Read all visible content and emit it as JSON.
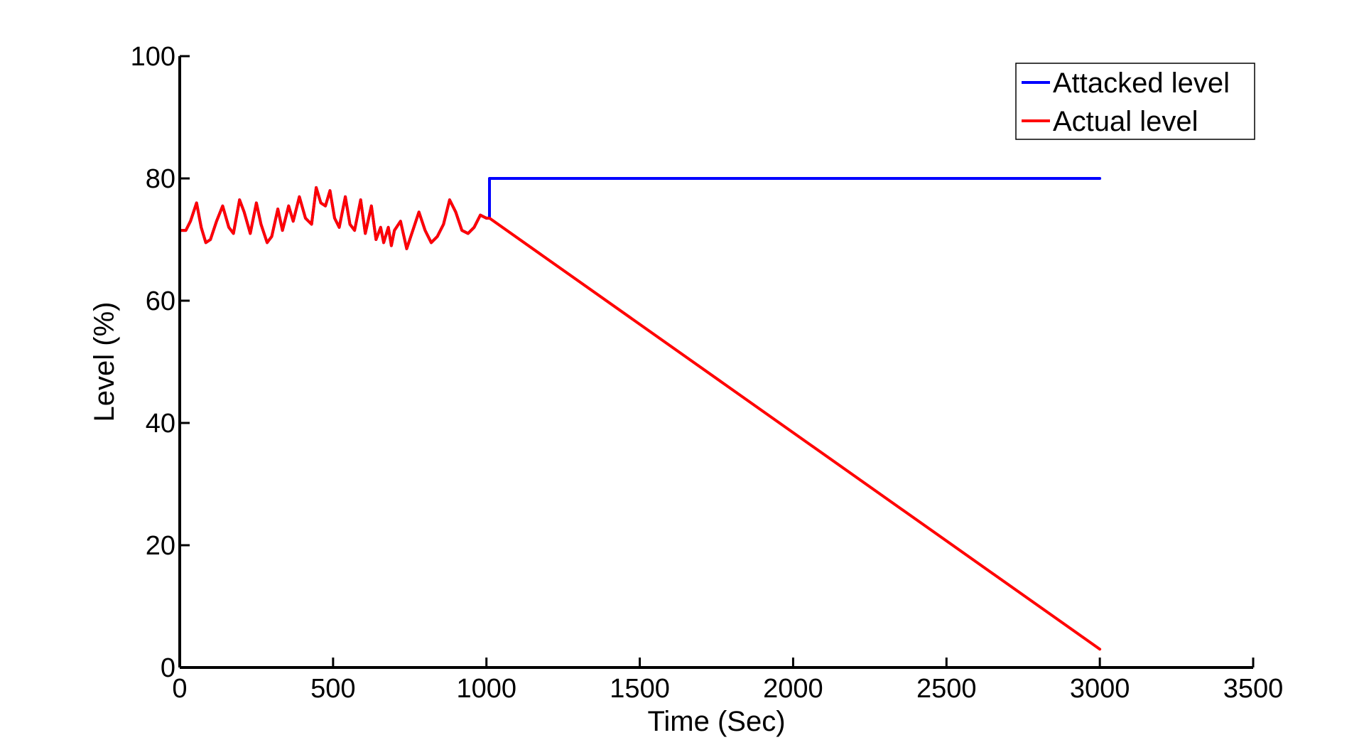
{
  "chart_data": {
    "type": "line",
    "title": "",
    "xlabel": "Time (Sec)",
    "ylabel": "Level (%)",
    "xlim": [
      0,
      3500
    ],
    "ylim": [
      0,
      100
    ],
    "xticks": [
      0,
      500,
      1000,
      1500,
      2000,
      2500,
      3000,
      3500
    ],
    "yticks": [
      0,
      20,
      40,
      60,
      80,
      100
    ],
    "grid": false,
    "legend_position": "top-right",
    "series": [
      {
        "name": "Attacked level",
        "color": "#0000ff",
        "x": [
          0,
          20,
          35,
          55,
          70,
          85,
          100,
          120,
          140,
          160,
          175,
          195,
          210,
          230,
          250,
          265,
          285,
          300,
          320,
          335,
          355,
          370,
          390,
          410,
          430,
          445,
          460,
          475,
          490,
          505,
          520,
          540,
          555,
          570,
          590,
          605,
          625,
          640,
          655,
          665,
          680,
          690,
          700,
          720,
          740,
          760,
          780,
          800,
          820,
          840,
          860,
          880,
          900,
          920,
          940,
          960,
          980,
          1000,
          1010,
          1010,
          3000
        ],
        "y": [
          71.5,
          71.5,
          73,
          76,
          72,
          69.5,
          70,
          73,
          75.5,
          72,
          71,
          76.5,
          74.5,
          71,
          76,
          72.5,
          69.5,
          70.5,
          75,
          71.5,
          75.5,
          73,
          77,
          73.5,
          72.5,
          78.5,
          76,
          75.5,
          78,
          73.5,
          72,
          77,
          72.5,
          71.5,
          76.5,
          71,
          75.5,
          70,
          72,
          69.5,
          72,
          69,
          71.5,
          73,
          68.5,
          71.5,
          74.5,
          71.5,
          69.5,
          70.5,
          72.5,
          76.5,
          74.5,
          71.5,
          71,
          72,
          74,
          73.5,
          73.5,
          80,
          80
        ]
      },
      {
        "name": "Actual level",
        "color": "#ff0000",
        "x": [
          0,
          20,
          35,
          55,
          70,
          85,
          100,
          120,
          140,
          160,
          175,
          195,
          210,
          230,
          250,
          265,
          285,
          300,
          320,
          335,
          355,
          370,
          390,
          410,
          430,
          445,
          460,
          475,
          490,
          505,
          520,
          540,
          555,
          570,
          590,
          605,
          625,
          640,
          655,
          665,
          680,
          690,
          700,
          720,
          740,
          760,
          780,
          800,
          820,
          840,
          860,
          880,
          900,
          920,
          940,
          960,
          980,
          1000,
          1010,
          3000
        ],
        "y": [
          71.5,
          71.5,
          73,
          76,
          72,
          69.5,
          70,
          73,
          75.5,
          72,
          71,
          76.5,
          74.5,
          71,
          76,
          72.5,
          69.5,
          70.5,
          75,
          71.5,
          75.5,
          73,
          77,
          73.5,
          72.5,
          78.5,
          76,
          75.5,
          78,
          73.5,
          72,
          77,
          72.5,
          71.5,
          76.5,
          71,
          75.5,
          70,
          72,
          69.5,
          72,
          69,
          71.5,
          73,
          68.5,
          71.5,
          74.5,
          71.5,
          69.5,
          70.5,
          72.5,
          76.5,
          74.5,
          71.5,
          71,
          72,
          74,
          73.5,
          73.5,
          3
        ]
      }
    ]
  }
}
